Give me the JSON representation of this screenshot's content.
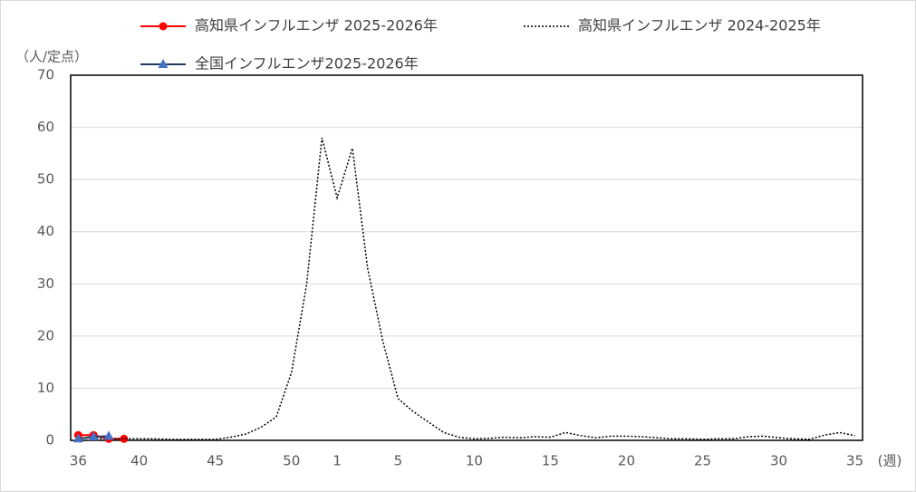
{
  "chart_data": {
    "type": "line",
    "y_label": "（人/定点）",
    "x_label": "(週)",
    "categories": [
      "36",
      null,
      null,
      null,
      "40",
      null,
      null,
      null,
      null,
      "45",
      null,
      null,
      null,
      null,
      "50",
      null,
      null,
      "1",
      null,
      null,
      null,
      "5",
      null,
      null,
      null,
      null,
      "10",
      null,
      null,
      null,
      null,
      "15",
      null,
      null,
      null,
      null,
      "20",
      null,
      null,
      null,
      null,
      "25",
      null,
      null,
      null,
      null,
      "30",
      null,
      null,
      null,
      null,
      "35"
    ],
    "series": [
      {
        "name": "高知県インフルエンザ 2025-2026年",
        "color": "#ff0000",
        "marker": "circle",
        "marker_color": "#ff0000",
        "dash": "solid",
        "values": [
          1.0,
          1.0,
          0.3,
          0.3,
          null,
          null,
          null,
          null,
          null,
          null,
          null,
          null,
          null,
          null,
          null,
          null,
          null,
          null,
          null,
          null,
          null,
          null,
          null,
          null,
          null,
          null,
          null,
          null,
          null,
          null,
          null,
          null,
          null,
          null,
          null,
          null,
          null,
          null,
          null,
          null,
          null,
          null,
          null,
          null,
          null,
          null,
          null,
          null,
          null,
          null,
          null,
          null
        ]
      },
      {
        "name": "高知県インフルエンザ 2024-2025年",
        "color": "#000000",
        "marker": null,
        "dash": "dotted",
        "values": [
          0.5,
          0.4,
          0.3,
          0.3,
          0.3,
          0.3,
          0.2,
          0.2,
          0.2,
          0.2,
          0.6,
          1.2,
          2.5,
          4.5,
          13,
          30,
          58,
          46.5,
          56,
          33,
          19,
          8,
          5.5,
          3.5,
          1.5,
          0.6,
          0.3,
          0.4,
          0.6,
          0.5,
          0.7,
          0.6,
          1.5,
          0.9,
          0.5,
          0.8,
          0.8,
          0.7,
          0.5,
          0.3,
          0.3,
          0.2,
          0.3,
          0.3,
          0.7,
          0.8,
          0.5,
          0.3,
          0.2,
          1.0,
          1.5,
          0.9
        ]
      },
      {
        "name": "全国インフルエンザ2025-2026年",
        "color": "#1f3864",
        "marker": "triangle",
        "marker_color": "#4472c4",
        "dash": "solid",
        "values": [
          0.3,
          0.7,
          0.8,
          null,
          null,
          null,
          null,
          null,
          null,
          null,
          null,
          null,
          null,
          null,
          null,
          null,
          null,
          null,
          null,
          null,
          null,
          null,
          null,
          null,
          null,
          null,
          null,
          null,
          null,
          null,
          null,
          null,
          null,
          null,
          null,
          null,
          null,
          null,
          null,
          null,
          null,
          null,
          null,
          null,
          null,
          null,
          null,
          null,
          null,
          null,
          null,
          null
        ]
      }
    ],
    "ylim": [
      0,
      70
    ],
    "yticks": [
      0,
      10,
      20,
      30,
      40,
      50,
      60,
      70
    ],
    "grid": true
  }
}
